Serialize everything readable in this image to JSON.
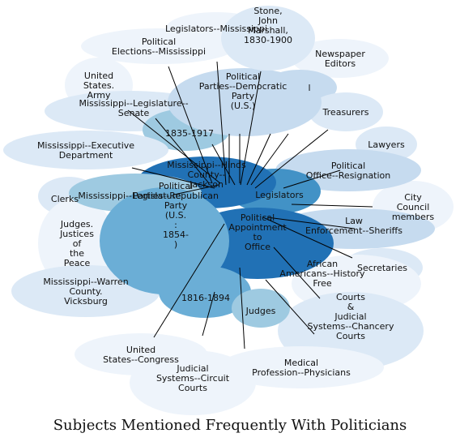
{
  "title": "Subjects Mentioned Frequently With Politicians",
  "colors": {
    "palest": "#eef4fb",
    "pale": "#dce9f6",
    "light": "#c6dbef",
    "mid": "#9ecae1",
    "medium": "#6baed6",
    "strong": "#4292c6",
    "deep": "#2171b5",
    "link": "#000000"
  },
  "nodes": [
    {
      "id": "legislators-mississippi",
      "lines": [
        "Legislators--Mississippi"
      ],
      "shade": "palest"
    },
    {
      "id": "political-elections",
      "lines": [
        "Political",
        "Elections--Mississippi"
      ],
      "shade": "palest"
    },
    {
      "id": "stone-marshall",
      "lines": [
        "Stone,",
        "John",
        "Marshall,",
        "1830-1900"
      ],
      "shade": "pale"
    },
    {
      "id": "newspaper-editors",
      "lines": [
        "Newspaper",
        "Editors"
      ],
      "shade": "palest"
    },
    {
      "id": "united-states-army",
      "lines": [
        "United",
        "States.",
        "Army"
      ],
      "shade": "palest"
    },
    {
      "id": "legislature-senate",
      "lines": [
        "Mississippi--Legislature--",
        "Senate"
      ],
      "shade": "pale"
    },
    {
      "id": "political-parties-democratic",
      "lines": [
        "Political",
        "Parties--Democratic",
        "Party",
        "(U.S.)"
      ],
      "shade": "light"
    },
    {
      "id": "hidden-l",
      "lines": [
        "l"
      ],
      "shade": "light"
    },
    {
      "id": "treasurers",
      "lines": [
        "Treasurers"
      ],
      "shade": "pale"
    },
    {
      "id": "dates-1835",
      "lines": [
        "1835-1917"
      ],
      "shade": "mid"
    },
    {
      "id": "lawyers",
      "lines": [
        "Lawyers"
      ],
      "shade": "pale"
    },
    {
      "id": "executive-department",
      "lines": [
        "Mississippi--Executive",
        "Department"
      ],
      "shade": "pale"
    },
    {
      "id": "political-office-resignation",
      "lines": [
        "Political",
        "Office--Resignation"
      ],
      "shade": "light"
    },
    {
      "id": "hinds-county-wilson",
      "lines": [
        "Mississippi--Hinds",
        "County--",
        "Jackson"
      ],
      "shade": "deep"
    },
    {
      "id": "legislators",
      "lines": [
        "Legislators"
      ],
      "shade": "strong"
    },
    {
      "id": "clerks",
      "lines": [
        "Clerks"
      ],
      "shade": "pale"
    },
    {
      "id": "mississippi-legislature",
      "lines": [
        "Mississippi--Legislature"
      ],
      "shade": "mid"
    },
    {
      "id": "city-council-members",
      "lines": [
        "City",
        "Council",
        "members"
      ],
      "shade": "palest"
    },
    {
      "id": "judges-justices",
      "lines": [
        "Judges.",
        "Justices",
        "of",
        "the",
        "Peace"
      ],
      "shade": "palest"
    },
    {
      "id": "political-appointment",
      "lines": [
        "Political",
        "Appointment",
        "to",
        "Office"
      ],
      "shade": "deep"
    },
    {
      "id": "law-enforcement-sheriffs",
      "lines": [
        "Law",
        "Enforcement--Sheriffs"
      ],
      "shade": "light"
    },
    {
      "id": "political-parties-republican",
      "lines": [
        "Political",
        "Parties--Republican",
        "Party",
        "(U.S.",
        ":",
        "1854-",
        ")"
      ],
      "shade": "medium"
    },
    {
      "id": "dates-1816",
      "lines": [
        "1816-1894"
      ],
      "shade": "medium"
    },
    {
      "id": "secretaries",
      "lines": [
        "Secretaries"
      ],
      "shade": "pale"
    },
    {
      "id": "warren-county",
      "lines": [
        "Mississippi--Warren",
        "County.",
        "Vicksburg"
      ],
      "shade": "pale"
    },
    {
      "id": "african-americans",
      "lines": [
        "African",
        "Americans--History",
        "Free"
      ],
      "shade": "palest"
    },
    {
      "id": "judges",
      "lines": [
        "Judges"
      ],
      "shade": "mid"
    },
    {
      "id": "courts-chancery",
      "lines": [
        "Courts",
        "&",
        "Judicial",
        "Systems--Chancery",
        "Courts"
      ],
      "shade": "pale"
    },
    {
      "id": "united-states-congress",
      "lines": [
        "United",
        "States--Congress"
      ],
      "shade": "palest"
    },
    {
      "id": "medical-physicians",
      "lines": [
        "Medical",
        "Profession--Physicians"
      ],
      "shade": "palest"
    },
    {
      "id": "judicial-circuit-courts",
      "lines": [
        "Judicial",
        "Systems--Circuit",
        "Courts"
      ],
      "shade": "palest"
    }
  ]
}
